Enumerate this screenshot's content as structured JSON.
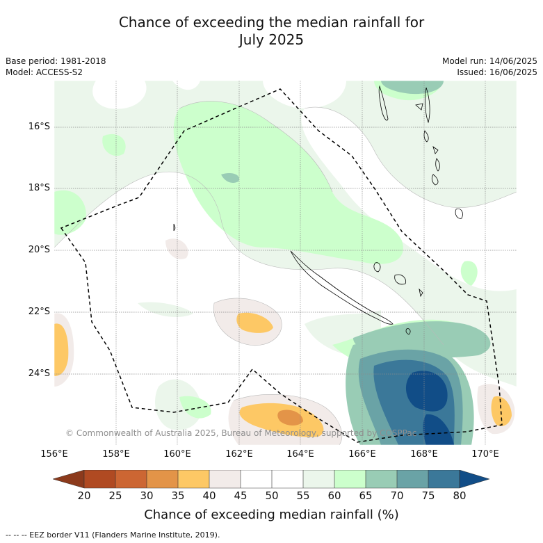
{
  "title_line1": "Chance of exceeding the median rainfall for",
  "title_line2": "July 2025",
  "base_period": "Base period: 1981-2018",
  "model": "Model: ACCESS-S2",
  "model_run": "Model run: 14/06/2025",
  "issued": "Issued: 16/06/2025",
  "lat_labels": [
    "16°S",
    "18°S",
    "20°S",
    "22°S",
    "24°S"
  ],
  "lon_labels": [
    "156°E",
    "158°E",
    "160°E",
    "162°E",
    "164°E",
    "166°E",
    "168°E",
    "170°E"
  ],
  "copyright": "© Commonwealth of Australia 2025, Bureau of Meteorology, supported by COSPPac",
  "colorbar": {
    "label": "Chance of exceeding median rainfall (%)",
    "ticks": [
      "20",
      "25",
      "30",
      "35",
      "40",
      "45",
      "50",
      "55",
      "60",
      "65",
      "70",
      "75",
      "80"
    ],
    "colors": {
      "lt20": "#8c3a1c",
      "c20_25": "#b04a22",
      "c25_30": "#cc6633",
      "c30_35": "#e39448",
      "c35_40": "#fdc865",
      "c40_45": "#f2ebe9",
      "c45_55": "#ffffff",
      "c55_60": "#ebf6eb",
      "c60_65": "#ccffcc",
      "c65_70": "#99ccb5",
      "c70_75": "#6aa3a6",
      "c75_80": "#3b7899",
      "gt80": "#114d87"
    }
  },
  "footer": "--  --  -- EEZ border V11 (Flanders Marine Institute, 2019)."
}
